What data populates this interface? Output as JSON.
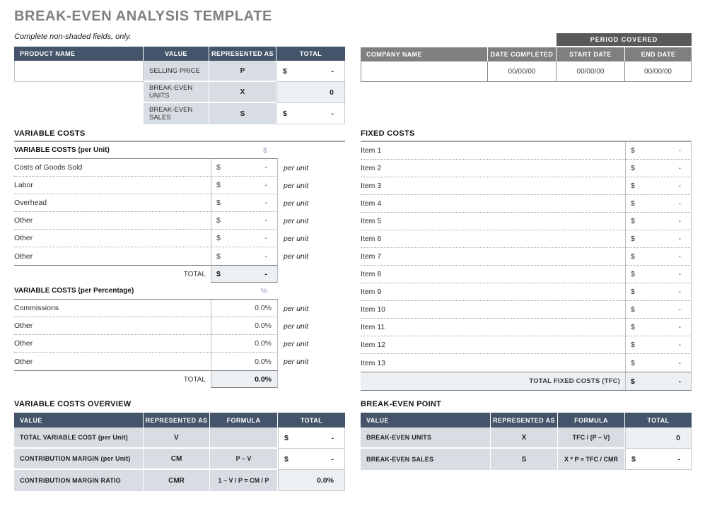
{
  "title": "BREAK-EVEN ANALYSIS TEMPLATE",
  "subtitle": "Complete non-shaded fields, only.",
  "colors": {
    "header_dark_blue": "#44546A",
    "header_gray": "#7F7F7F",
    "header_dark_gray": "#595959",
    "cell_shaded": "#D8DDE4",
    "cell_computed": "#EDF0F3",
    "accent_symbol": "#8FA0BC",
    "title_gray": "#7F7F7F"
  },
  "product_table": {
    "headers": {
      "product_name": "PRODUCT NAME",
      "value": "VALUE",
      "represented_as": "REPRESENTED AS",
      "total": "TOTAL"
    },
    "product_name_value": "",
    "rows": [
      {
        "label": "SELLING PRICE",
        "symbol": "P",
        "currency": "$",
        "amount": "-"
      },
      {
        "label": "BREAK-EVEN UNITS",
        "symbol": "X",
        "currency": "",
        "amount": "0"
      },
      {
        "label": "BREAK-EVEN SALES",
        "symbol": "S",
        "currency": "$",
        "amount": "-"
      }
    ]
  },
  "company_table": {
    "period_covered": "PERIOD  COVERED",
    "headers": {
      "company_name": "COMPANY NAME",
      "date_completed": "DATE COMPLETED",
      "start_date": "START DATE",
      "end_date": "END DATE"
    },
    "company_name_value": "",
    "date_completed": "00/00/00",
    "start_date": "00/00/00",
    "end_date": "00/00/00"
  },
  "variable_costs": {
    "title": "VARIABLE COSTS",
    "per_unit": {
      "header": "VARIABLE COSTS (per Unit)",
      "symbol": "$",
      "rows": [
        {
          "label": "Costs of Goods Sold",
          "currency": "$",
          "amount": "-",
          "suffix": "per unit"
        },
        {
          "label": "Labor",
          "currency": "$",
          "amount": "-",
          "suffix": "per unit"
        },
        {
          "label": "Overhead",
          "currency": "$",
          "amount": "-",
          "suffix": "per unit"
        },
        {
          "label": "Other",
          "currency": "$",
          "amount": "-",
          "suffix": "per unit"
        },
        {
          "label": "Other",
          "currency": "$",
          "amount": "-",
          "suffix": "per unit"
        },
        {
          "label": "Other",
          "currency": "$",
          "amount": "-",
          "suffix": "per unit"
        }
      ],
      "total_label": "TOTAL",
      "total_currency": "$",
      "total_amount": "-"
    },
    "per_percentage": {
      "header": "VARIABLE COSTS (per Percentage)",
      "symbol": "%",
      "rows": [
        {
          "label": "Commissions",
          "amount": "0.0%",
          "suffix": "per unit"
        },
        {
          "label": "Other",
          "amount": "0.0%",
          "suffix": "per unit"
        },
        {
          "label": "Other",
          "amount": "0.0%",
          "suffix": "per unit"
        },
        {
          "label": "Other",
          "amount": "0.0%",
          "suffix": "per unit"
        }
      ],
      "total_label": "TOTAL",
      "total_amount": "0.0%"
    }
  },
  "fixed_costs": {
    "title": "FIXED COSTS",
    "rows": [
      {
        "label": "Item 1",
        "currency": "$",
        "amount": "-"
      },
      {
        "label": "Item 2",
        "currency": "$",
        "amount": "-"
      },
      {
        "label": "Item 3",
        "currency": "$",
        "amount": "-"
      },
      {
        "label": "Item 4",
        "currency": "$",
        "amount": "-"
      },
      {
        "label": "Item 5",
        "currency": "$",
        "amount": "-"
      },
      {
        "label": "Item 6",
        "currency": "$",
        "amount": "-"
      },
      {
        "label": "Item 7",
        "currency": "$",
        "amount": "-"
      },
      {
        "label": "Item 8",
        "currency": "$",
        "amount": "-"
      },
      {
        "label": "Item 9",
        "currency": "$",
        "amount": "-"
      },
      {
        "label": "Item 10",
        "currency": "$",
        "amount": "-"
      },
      {
        "label": "Item 11",
        "currency": "$",
        "amount": "-"
      },
      {
        "label": "Item 12",
        "currency": "$",
        "amount": "-"
      },
      {
        "label": "Item 13",
        "currency": "$",
        "amount": "-"
      }
    ],
    "total_label": "TOTAL FIXED COSTS (TFC)",
    "total_currency": "$",
    "total_amount": "-"
  },
  "overview_table": {
    "title": "VARIABLE COSTS OVERVIEW",
    "headers": {
      "value": "VALUE",
      "represented_as": "REPRESENTED AS",
      "formula": "FORMULA",
      "total": "TOTAL"
    },
    "rows": [
      {
        "label": "TOTAL VARIABLE COST (per Unit)",
        "symbol": "V",
        "formula": "",
        "currency": "$",
        "amount": "-"
      },
      {
        "label": "CONTRIBUTION MARGIN (per Unit)",
        "symbol": "CM",
        "formula": "P – V",
        "currency": "$",
        "amount": "-"
      },
      {
        "label": "CONTRIBUTION MARGIN RATIO",
        "symbol": "CMR",
        "formula": "1 – V / P = CM / P",
        "currency": "",
        "amount": "0.0%"
      }
    ]
  },
  "bep_table": {
    "title": "BREAK-EVEN POINT",
    "headers": {
      "value": "VALUE",
      "represented_as": "REPRESENTED AS",
      "formula": "FORMULA",
      "total": "TOTAL"
    },
    "rows": [
      {
        "label": "BREAK-EVEN UNITS",
        "symbol": "X",
        "formula": "TFC / (P – V)",
        "currency": "",
        "amount": "0"
      },
      {
        "label": "BREAK-EVEN SALES",
        "symbol": "S",
        "formula": "X * P = TFC / CMR",
        "currency": "$",
        "amount": "-"
      }
    ]
  }
}
